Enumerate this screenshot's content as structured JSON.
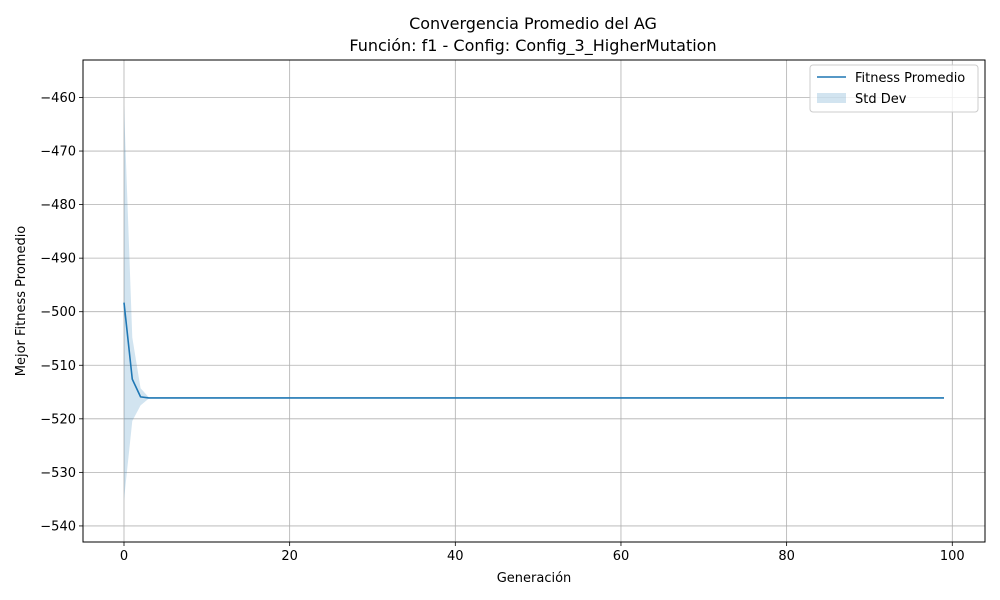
{
  "chart_data": {
    "type": "line",
    "title": "Convergencia Promedio del AG",
    "subtitle": "Función: f1 - Config: Config_3_HigherMutation",
    "xlabel": "Generación",
    "ylabel": "Mejor Fitness Promedio",
    "xlim": [
      -4.95,
      103.95
    ],
    "ylim": [
      -543,
      -453
    ],
    "xticks": [
      0,
      20,
      40,
      60,
      80,
      100
    ],
    "yticks": [
      -540,
      -530,
      -520,
      -510,
      -500,
      -490,
      -480,
      -470,
      -460
    ],
    "xtick_labels": [
      "0",
      "20",
      "40",
      "60",
      "80",
      "100"
    ],
    "ytick_labels": [
      "−540",
      "−530",
      "−520",
      "−510",
      "−500",
      "−490",
      "−480",
      "−470",
      "−460"
    ],
    "grid": true,
    "legend_position": "top-right",
    "series": [
      {
        "name": "Fitness Promedio",
        "kind": "line",
        "color": "#1f77b4",
        "x": [
          0,
          1,
          2,
          3,
          4,
          5,
          99
        ],
        "y": [
          -498.3,
          -512.6,
          -515.9,
          -516.1,
          -516.1,
          -516.1,
          -516.1
        ]
      },
      {
        "name": "Std Dev",
        "kind": "band",
        "color": "#1f77b4",
        "opacity": 0.2,
        "x": [
          0,
          1,
          2,
          3,
          4,
          5,
          99
        ],
        "upper": [
          -461.5,
          -504.8,
          -514.3,
          -516.0,
          -516.1,
          -516.1,
          -516.1
        ],
        "lower": [
          -535.1,
          -520.4,
          -517.5,
          -516.2,
          -516.1,
          -516.1,
          -516.1
        ]
      }
    ]
  }
}
